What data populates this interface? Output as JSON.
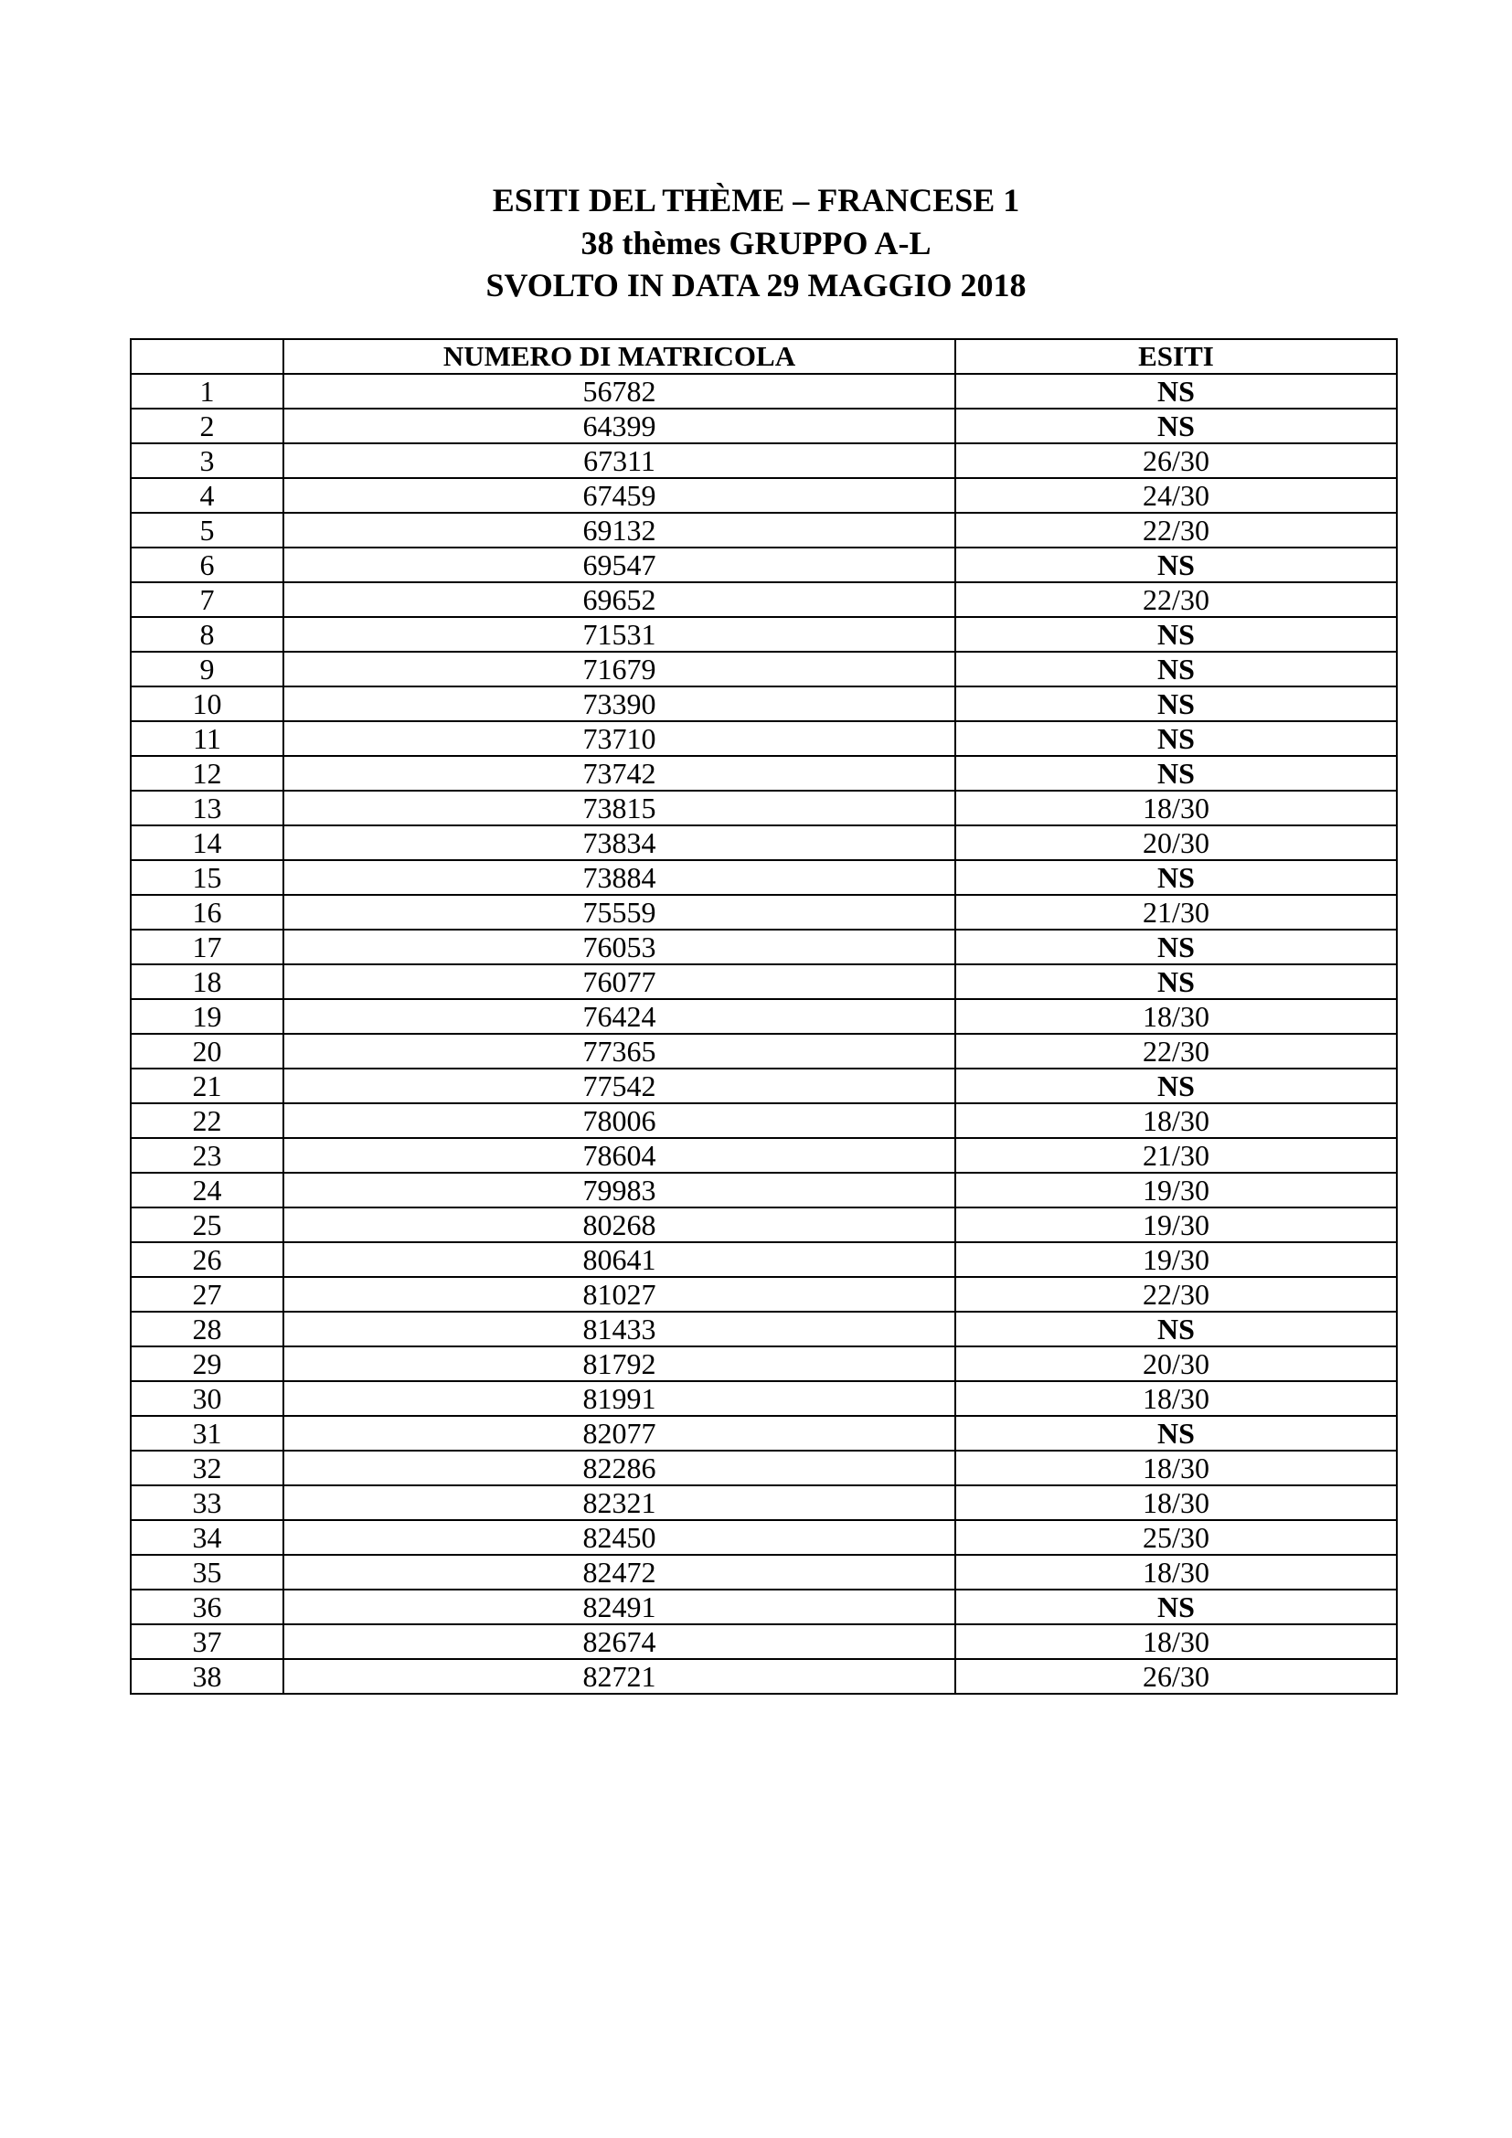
{
  "title": {
    "line1": "ESITI DEL THÈME – FRANCESE 1",
    "line2": "38 thèmes GRUPPO A-L",
    "line3": "SVOLTO IN DATA 29 MAGGIO 2018"
  },
  "table": {
    "headers": [
      "",
      "NUMERO DI MATRICOLA",
      "ESITI"
    ],
    "rows": [
      [
        "1",
        "56782",
        "NS"
      ],
      [
        "2",
        "64399",
        "NS"
      ],
      [
        "3",
        "67311",
        "26/30"
      ],
      [
        "4",
        "67459",
        "24/30"
      ],
      [
        "5",
        "69132",
        "22/30"
      ],
      [
        "6",
        "69547",
        "NS"
      ],
      [
        "7",
        "69652",
        "22/30"
      ],
      [
        "8",
        "71531",
        "NS"
      ],
      [
        "9",
        "71679",
        "NS"
      ],
      [
        "10",
        "73390",
        "NS"
      ],
      [
        "11",
        "73710",
        "NS"
      ],
      [
        "12",
        "73742",
        "NS"
      ],
      [
        "13",
        "73815",
        "18/30"
      ],
      [
        "14",
        "73834",
        "20/30"
      ],
      [
        "15",
        "73884",
        "NS"
      ],
      [
        "16",
        "75559",
        "21/30"
      ],
      [
        "17",
        "76053",
        "NS"
      ],
      [
        "18",
        "76077",
        "NS"
      ],
      [
        "19",
        "76424",
        "18/30"
      ],
      [
        "20",
        "77365",
        "22/30"
      ],
      [
        "21",
        "77542",
        "NS"
      ],
      [
        "22",
        "78006",
        "18/30"
      ],
      [
        "23",
        "78604",
        "21/30"
      ],
      [
        "24",
        "79983",
        "19/30"
      ],
      [
        "25",
        "80268",
        "19/30"
      ],
      [
        "26",
        "80641",
        "19/30"
      ],
      [
        "27",
        "81027",
        "22/30"
      ],
      [
        "28",
        "81433",
        "NS"
      ],
      [
        "29",
        "81792",
        "20/30"
      ],
      [
        "30",
        "81991",
        "18/30"
      ],
      [
        "31",
        "82077",
        "NS"
      ],
      [
        "32",
        "82286",
        "18/30"
      ],
      [
        "33",
        "82321",
        "18/30"
      ],
      [
        "34",
        "82450",
        "25/30"
      ],
      [
        "35",
        "82472",
        "18/30"
      ],
      [
        "36",
        "82491",
        "NS"
      ],
      [
        "37",
        "82674",
        "18/30"
      ],
      [
        "38",
        "82721",
        "26/30"
      ]
    ]
  }
}
